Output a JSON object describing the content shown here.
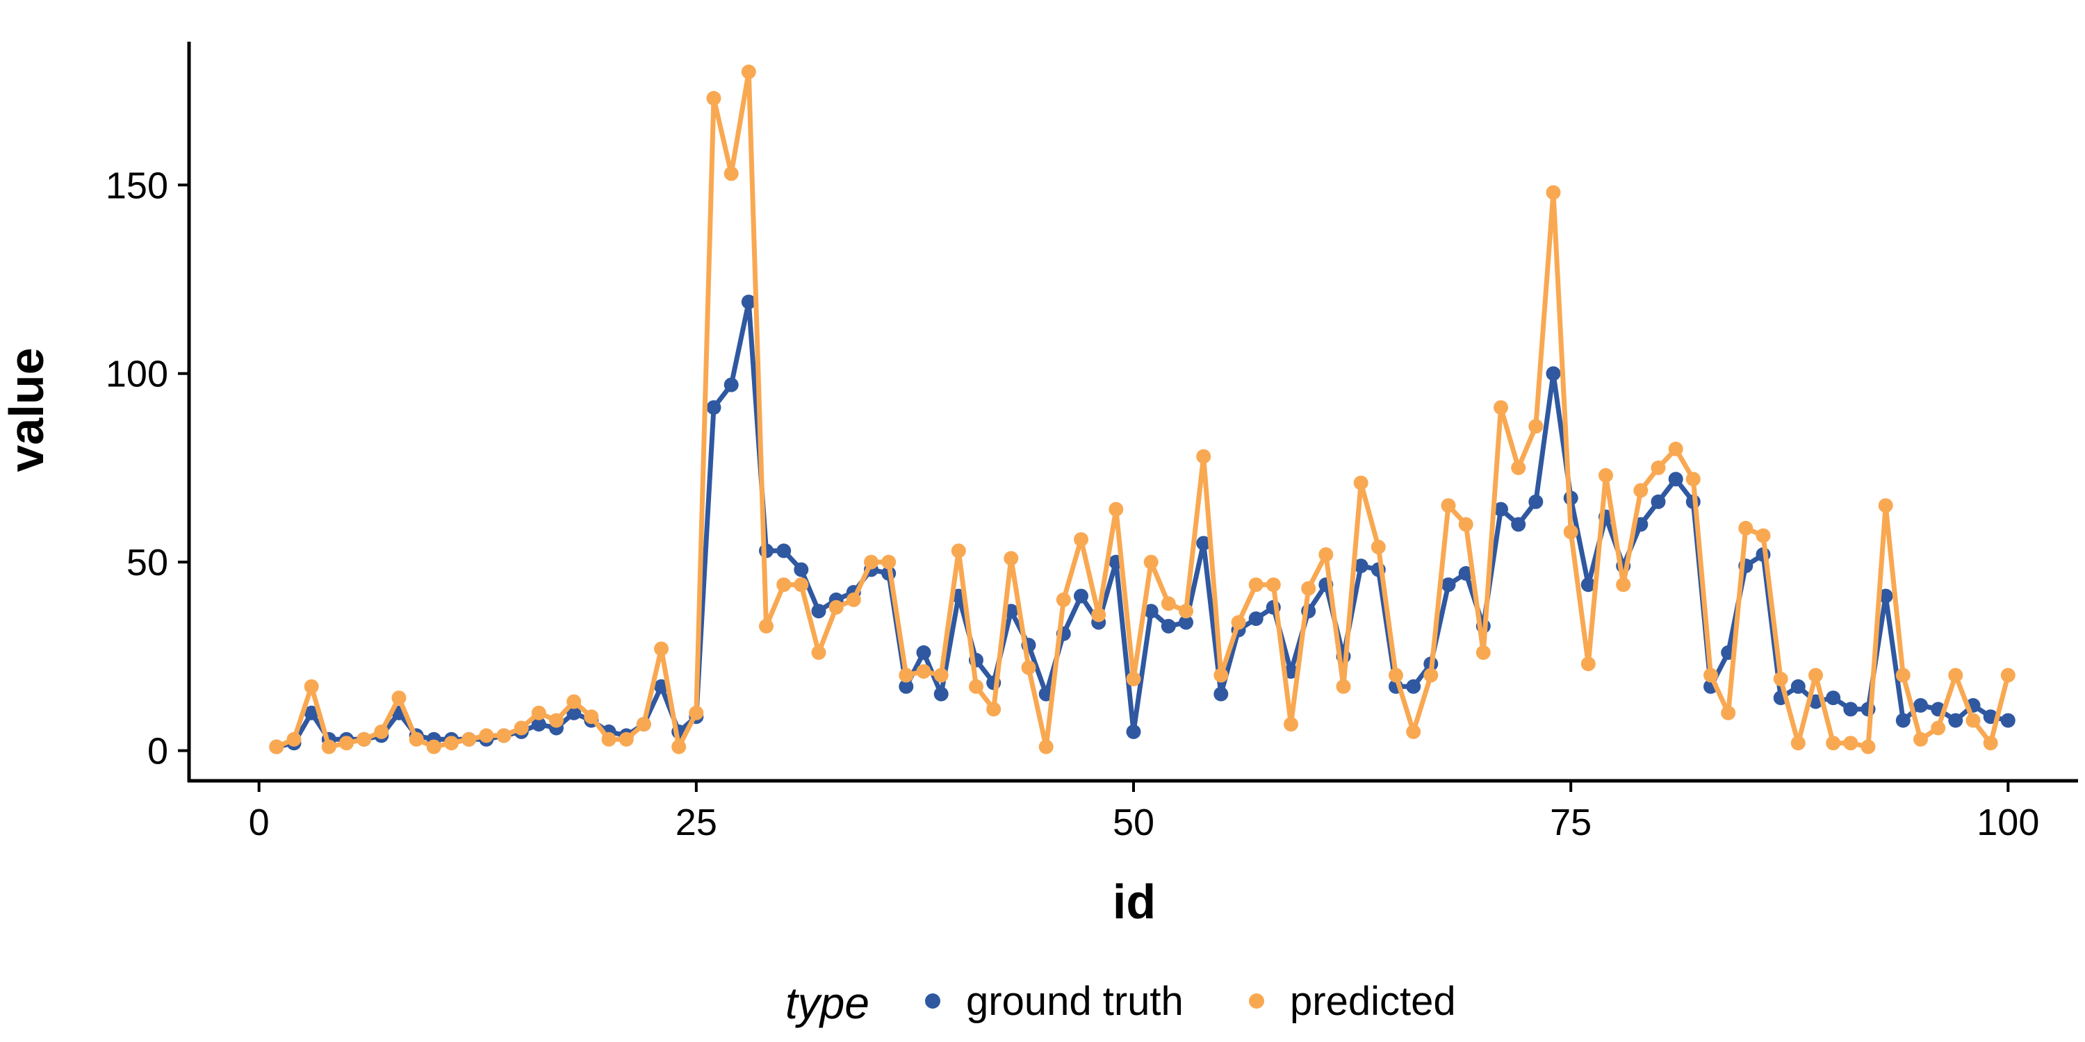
{
  "chart_data": {
    "type": "line",
    "xlabel": "id",
    "ylabel": "value",
    "xlim": [
      -4,
      104
    ],
    "ylim": [
      -8,
      188
    ],
    "x_ticks": [
      0,
      25,
      50,
      75,
      100
    ],
    "y_ticks": [
      0,
      50,
      100,
      150
    ],
    "grid": false,
    "legend": {
      "position": "bottom",
      "title": "type"
    },
    "x": [
      1,
      2,
      3,
      4,
      5,
      6,
      7,
      8,
      9,
      10,
      11,
      12,
      13,
      14,
      15,
      16,
      17,
      18,
      19,
      20,
      21,
      22,
      23,
      24,
      25,
      26,
      27,
      28,
      29,
      30,
      31,
      32,
      33,
      34,
      35,
      36,
      37,
      38,
      39,
      40,
      41,
      42,
      43,
      44,
      45,
      46,
      47,
      48,
      49,
      50,
      51,
      52,
      53,
      54,
      55,
      56,
      57,
      58,
      59,
      60,
      61,
      62,
      63,
      64,
      65,
      66,
      67,
      68,
      69,
      70,
      71,
      72,
      73,
      74,
      75,
      76,
      77,
      78,
      79,
      80,
      81,
      82,
      83,
      84,
      85,
      86,
      87,
      88,
      89,
      90,
      91,
      92,
      93,
      94,
      95,
      96,
      97,
      98,
      99,
      100
    ],
    "series": [
      {
        "name": "ground truth",
        "color": "#2f58a0",
        "values": [
          1,
          2,
          10,
          3,
          3,
          3,
          4,
          10,
          4,
          3,
          3,
          3,
          3,
          4,
          5,
          7,
          6,
          10,
          8,
          5,
          4,
          7,
          17,
          5,
          9,
          91,
          97,
          119,
          53,
          53,
          48,
          37,
          40,
          42,
          48,
          47,
          17,
          26,
          15,
          41,
          24,
          18,
          37,
          28,
          15,
          31,
          41,
          34,
          50,
          5,
          37,
          33,
          34,
          55,
          15,
          32,
          35,
          38,
          21,
          37,
          44,
          25,
          49,
          48,
          17,
          17,
          23,
          44,
          47,
          33,
          64,
          60,
          66,
          100,
          67,
          44,
          62,
          49,
          60,
          66,
          72,
          66,
          17,
          26,
          49,
          52,
          14,
          17,
          13,
          14,
          11,
          11,
          41,
          8,
          12,
          11,
          8,
          12,
          9,
          8
        ]
      },
      {
        "name": "predicted",
        "color": "#f9a852",
        "values": [
          1,
          3,
          17,
          1,
          2,
          3,
          5,
          14,
          3,
          1,
          2,
          3,
          4,
          4,
          6,
          10,
          8,
          13,
          9,
          3,
          3,
          7,
          27,
          1,
          10,
          173,
          153,
          180,
          33,
          44,
          44,
          26,
          38,
          40,
          50,
          50,
          20,
          21,
          20,
          53,
          17,
          11,
          51,
          22,
          1,
          40,
          56,
          36,
          64,
          19,
          50,
          39,
          37,
          78,
          20,
          34,
          44,
          44,
          7,
          43,
          52,
          17,
          71,
          54,
          20,
          5,
          20,
          65,
          60,
          26,
          91,
          75,
          86,
          148,
          58,
          23,
          73,
          44,
          69,
          75,
          80,
          72,
          20,
          10,
          59,
          57,
          19,
          2,
          20,
          2,
          2,
          1,
          65,
          20,
          3,
          6,
          20,
          8,
          2,
          20
        ]
      }
    ]
  }
}
